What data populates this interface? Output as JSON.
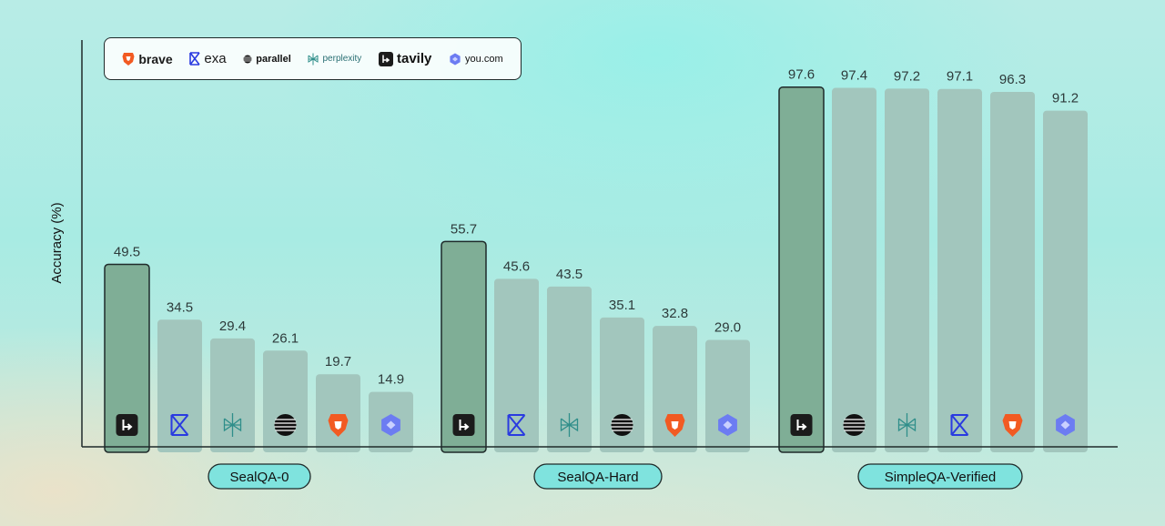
{
  "chart_data": {
    "type": "bar",
    "ylabel": "Accuracy (%)",
    "ylim": [
      0,
      100
    ],
    "grid": false,
    "legend_position": "top-left",
    "legend": [
      {
        "key": "brave",
        "label": "brave"
      },
      {
        "key": "exa",
        "label": "exa"
      },
      {
        "key": "parallel",
        "label": "parallel"
      },
      {
        "key": "perplexity",
        "label": "perplexity"
      },
      {
        "key": "tavily",
        "label": "tavily"
      },
      {
        "key": "you",
        "label": "you.com"
      }
    ],
    "groups": [
      {
        "name": "SealQA-0",
        "bars": [
          {
            "provider": "tavily",
            "value": 49.5,
            "label": "49.5"
          },
          {
            "provider": "exa",
            "value": 34.5,
            "label": "34.5"
          },
          {
            "provider": "perplexity",
            "value": 29.4,
            "label": "29.4"
          },
          {
            "provider": "parallel",
            "value": 26.1,
            "label": "26.1"
          },
          {
            "provider": "brave",
            "value": 19.7,
            "label": "19.7"
          },
          {
            "provider": "you",
            "value": 14.9,
            "label": "14.9"
          }
        ]
      },
      {
        "name": "SealQA-Hard",
        "bars": [
          {
            "provider": "tavily",
            "value": 55.7,
            "label": "55.7"
          },
          {
            "provider": "exa",
            "value": 45.6,
            "label": "45.6"
          },
          {
            "provider": "perplexity",
            "value": 43.5,
            "label": "43.5"
          },
          {
            "provider": "parallel",
            "value": 35.1,
            "label": "35.1"
          },
          {
            "provider": "brave",
            "value": 32.8,
            "label": "32.8"
          },
          {
            "provider": "you",
            "value": 29.0,
            "label": "29.0"
          }
        ]
      },
      {
        "name": "SimpleQA-Verified",
        "bars": [
          {
            "provider": "tavily",
            "value": 97.6,
            "label": "97.6"
          },
          {
            "provider": "parallel",
            "value": 97.4,
            "label": "97.4"
          },
          {
            "provider": "perplexity",
            "value": 97.2,
            "label": "97.2"
          },
          {
            "provider": "exa",
            "value": 97.1,
            "label": "97.1"
          },
          {
            "provider": "brave",
            "value": 96.3,
            "label": "96.3"
          },
          {
            "provider": "you",
            "value": 91.2,
            "label": "91.2"
          }
        ]
      }
    ],
    "colors": {
      "highlight_bar": "#7fae96",
      "bar": "#a2c6bd",
      "brave": "#f25a22",
      "exa": "#2a3be0",
      "perplexity": "#2f8e8a",
      "tavily": "#1b1b1b",
      "you": "#6c7cf2"
    }
  }
}
